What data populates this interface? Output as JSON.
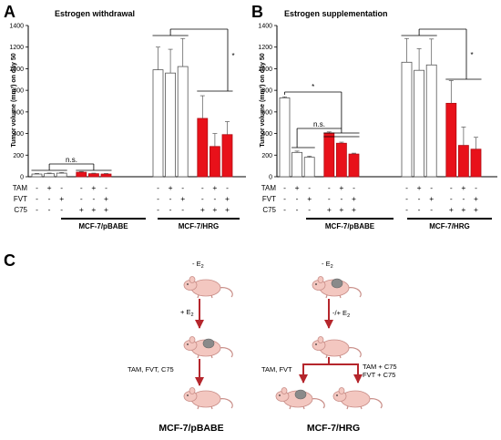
{
  "panel_a": {
    "label": "A"
  },
  "panel_b": {
    "label": "B"
  },
  "panel_c": {
    "label": "C"
  },
  "chart_data": [
    {
      "type": "bar",
      "panel": "A",
      "title": "Estrogen withdrawal",
      "ylabel": "Tumor volume (mm³) on day 50",
      "ylim": [
        0,
        1400
      ],
      "yticks": [
        0,
        200,
        400,
        600,
        800,
        1000,
        1200,
        1400
      ],
      "groups": [
        {
          "name": "MCF-7/pBABE",
          "bars": [
            {
              "color": "#ffffff",
              "value": 25,
              "err": 6,
              "tam": "-",
              "fvt": "-",
              "c75": "-"
            },
            {
              "color": "#ffffff",
              "value": 28,
              "err": 6,
              "tam": "+",
              "fvt": "-",
              "c75": "-"
            },
            {
              "color": "#ffffff",
              "value": 33,
              "err": 6,
              "tam": "-",
              "fvt": "+",
              "c75": "-"
            },
            {
              "color": "#e8111a",
              "value": 42,
              "err": 6,
              "tam": "-",
              "fvt": "-",
              "c75": "+"
            },
            {
              "color": "#e8111a",
              "value": 28,
              "err": 5,
              "tam": "+",
              "fvt": "-",
              "c75": "+"
            },
            {
              "color": "#e8111a",
              "value": 25,
              "err": 5,
              "tam": "-",
              "fvt": "+",
              "c75": "+"
            }
          ]
        },
        {
          "name": "MCF-7/HRG",
          "bars": [
            {
              "color": "#ffffff",
              "value": 990,
              "err": 210,
              "tam": "-",
              "fvt": "-",
              "c75": "-"
            },
            {
              "color": "#ffffff",
              "value": 960,
              "err": 220,
              "tam": "+",
              "fvt": "-",
              "c75": "-"
            },
            {
              "color": "#ffffff",
              "value": 1020,
              "err": 260,
              "tam": "-",
              "fvt": "+",
              "c75": "-"
            },
            {
              "color": "#e8111a",
              "value": 540,
              "err": 210,
              "tam": "-",
              "fvt": "-",
              "c75": "+"
            },
            {
              "color": "#e8111a",
              "value": 280,
              "err": 120,
              "tam": "+",
              "fvt": "-",
              "c75": "+"
            },
            {
              "color": "#e8111a",
              "value": 390,
              "err": 120,
              "tam": "-",
              "fvt": "+",
              "c75": "+"
            }
          ]
        }
      ],
      "annotations": [
        "n.s.",
        "*"
      ]
    },
    {
      "type": "bar",
      "panel": "B",
      "title": "Estrogen supplementation",
      "ylabel": "Tumor volume (mm³) on day 50",
      "ylim": [
        0,
        1400
      ],
      "yticks": [
        0,
        200,
        400,
        600,
        800,
        1000,
        1200,
        1400
      ],
      "groups": [
        {
          "name": "MCF-7/pBABE",
          "bars": [
            {
              "color": "#ffffff",
              "value": 730,
              "err": 10,
              "tam": "-",
              "fvt": "-",
              "c75": "-"
            },
            {
              "color": "#ffffff",
              "value": 225,
              "err": 12,
              "tam": "+",
              "fvt": "-",
              "c75": "-"
            },
            {
              "color": "#ffffff",
              "value": 180,
              "err": 10,
              "tam": "-",
              "fvt": "+",
              "c75": "-"
            },
            {
              "color": "#e8111a",
              "value": 405,
              "err": 10,
              "tam": "-",
              "fvt": "-",
              "c75": "+"
            },
            {
              "color": "#e8111a",
              "value": 310,
              "err": 10,
              "tam": "+",
              "fvt": "-",
              "c75": "+"
            },
            {
              "color": "#e8111a",
              "value": 210,
              "err": 8,
              "tam": "-",
              "fvt": "+",
              "c75": "+"
            }
          ]
        },
        {
          "name": "MCF-7/HRG",
          "bars": [
            {
              "color": "#ffffff",
              "value": 1060,
              "err": 220,
              "tam": "-",
              "fvt": "-",
              "c75": "-"
            },
            {
              "color": "#ffffff",
              "value": 985,
              "err": 200,
              "tam": "+",
              "fvt": "-",
              "c75": "-"
            },
            {
              "color": "#ffffff",
              "value": 1035,
              "err": 240,
              "tam": "-",
              "fvt": "+",
              "c75": "-"
            },
            {
              "color": "#e8111a",
              "value": 680,
              "err": 210,
              "tam": "-",
              "fvt": "-",
              "c75": "+"
            },
            {
              "color": "#e8111a",
              "value": 290,
              "err": 170,
              "tam": "+",
              "fvt": "-",
              "c75": "+"
            },
            {
              "color": "#e8111a",
              "value": 255,
              "err": 110,
              "tam": "-",
              "fvt": "+",
              "c75": "+"
            }
          ]
        }
      ],
      "annotations": [
        "*",
        "n.s.",
        "*"
      ]
    }
  ],
  "row_labels": {
    "tam": "TAM",
    "fvt": "FVT",
    "c75": "C75"
  },
  "diagram": {
    "left": {
      "top_label": "- E",
      "step1": "+ E",
      "sub": "2",
      "step2": "TAM, FVT, C75",
      "caption": "MCF-7/pBABE"
    },
    "right": {
      "top_label": "- E",
      "step1": "-/+ E",
      "sub": "2",
      "branch_left": "TAM, FVT",
      "branch_right_1": "TAM + C75",
      "branch_right_2": "FVT + C75",
      "caption": "MCF-7/HRG"
    }
  },
  "colors": {
    "red": "#e8111a",
    "arrow": "#b5262c",
    "mouse": "#f3c7c0",
    "mouse_edge": "#c98e88",
    "tumor": "#8a8a8a"
  }
}
